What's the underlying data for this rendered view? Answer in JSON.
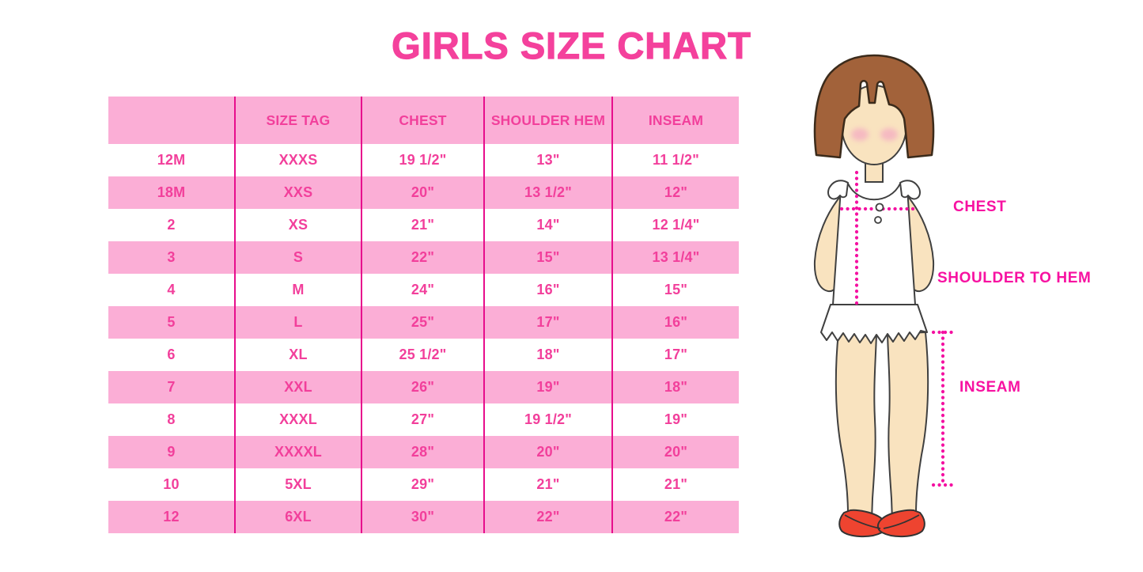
{
  "title": "GIRLS SIZE CHART",
  "colors": {
    "hot_pink": "#F23F9B",
    "title_pink": "#F4419C",
    "row_pink": "#FBAED6",
    "line_magenta": "#E70D8C",
    "label_magenta": "#F711A1",
    "dot_magenta": "#F411A1",
    "hair_brown": "#A2623A",
    "skin": "#F9E3BF",
    "shoe_red": "#EE4430"
  },
  "table": {
    "headers": [
      "",
      "SIZE TAG",
      "CHEST",
      "SHOULDER HEM",
      "INSEAM"
    ],
    "rows": [
      [
        "12M",
        "XXXS",
        "19 1/2\"",
        "13\"",
        "11 1/2\""
      ],
      [
        "18M",
        "XXS",
        "20\"",
        "13 1/2\"",
        "12\""
      ],
      [
        "2",
        "XS",
        "21\"",
        "14\"",
        "12 1/4\""
      ],
      [
        "3",
        "S",
        "22\"",
        "15\"",
        "13 1/4\""
      ],
      [
        "4",
        "M",
        "24\"",
        "16\"",
        "15\""
      ],
      [
        "5",
        "L",
        "25\"",
        "17\"",
        "16\""
      ],
      [
        "6",
        "XL",
        "25 1/2\"",
        "18\"",
        "17\""
      ],
      [
        "7",
        "XXL",
        "26\"",
        "19\"",
        "18\""
      ],
      [
        "8",
        "XXXL",
        "27\"",
        "19 1/2\"",
        "19\""
      ],
      [
        "9",
        "XXXXL",
        "28\"",
        "20\"",
        "20\""
      ],
      [
        "10",
        "5XL",
        "29\"",
        "21\"",
        "21\""
      ],
      [
        "12",
        "6XL",
        "30\"",
        "22\"",
        "22\""
      ]
    ]
  },
  "illustration": {
    "labels": {
      "chest": "CHEST",
      "shoulder_to_hem": "SHOULDER TO HEM",
      "inseam": "INSEAM"
    }
  },
  "chart_data": {
    "type": "table",
    "title": "GIRLS SIZE CHART",
    "columns": [
      "",
      "SIZE TAG",
      "CHEST",
      "SHOULDER HEM",
      "INSEAM"
    ],
    "rows": [
      [
        "12M",
        "XXXS",
        "19 1/2\"",
        "13\"",
        "11 1/2\""
      ],
      [
        "18M",
        "XXS",
        "20\"",
        "13 1/2\"",
        "12\""
      ],
      [
        "2",
        "XS",
        "21\"",
        "14\"",
        "12 1/4\""
      ],
      [
        "3",
        "S",
        "22\"",
        "15\"",
        "13 1/4\""
      ],
      [
        "4",
        "M",
        "24\"",
        "16\"",
        "15\""
      ],
      [
        "5",
        "L",
        "25\"",
        "17\"",
        "16\""
      ],
      [
        "6",
        "XL",
        "25 1/2\"",
        "18\"",
        "17\""
      ],
      [
        "7",
        "XXL",
        "26\"",
        "19\"",
        "18\""
      ],
      [
        "8",
        "XXXL",
        "27\"",
        "19 1/2\"",
        "19\""
      ],
      [
        "9",
        "XXXXL",
        "28\"",
        "20\"",
        "20\""
      ],
      [
        "10",
        "5XL",
        "29\"",
        "21\"",
        "21\""
      ],
      [
        "12",
        "6XL",
        "30\"",
        "22\"",
        "22\""
      ]
    ],
    "measurement_annotations": [
      "CHEST",
      "SHOULDER TO HEM",
      "INSEAM"
    ]
  }
}
